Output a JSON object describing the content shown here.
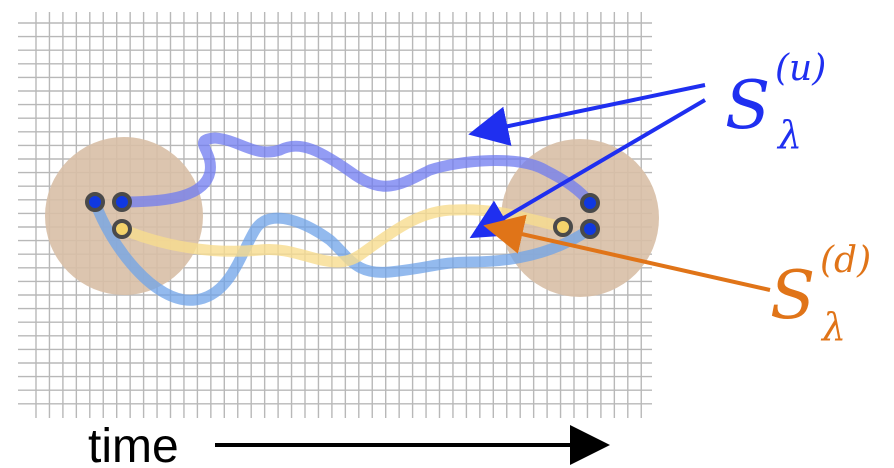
{
  "labels": {
    "up": {
      "base": "S",
      "sup": "(u)",
      "sub": "λ"
    },
    "down": {
      "base": "S",
      "sup": "(d)",
      "sub": "λ"
    },
    "time": "time"
  },
  "colors": {
    "grid": "#b8b8b8",
    "blob": "#d8bfa6",
    "blue_path": "#6f7bf0",
    "light_blue_path": "#6fa3e8",
    "yellow_path": "#f8dc8e",
    "up_arrow": "#1f2ff0",
    "down_arrow": "#e07418",
    "label_up": "#1f2ff0",
    "label_down": "#e07418",
    "dot_blue": "#1038e0",
    "dot_yellow": "#f4d36b",
    "dot_ring": "#4a4a4a",
    "axis_arrow": "#000000"
  }
}
